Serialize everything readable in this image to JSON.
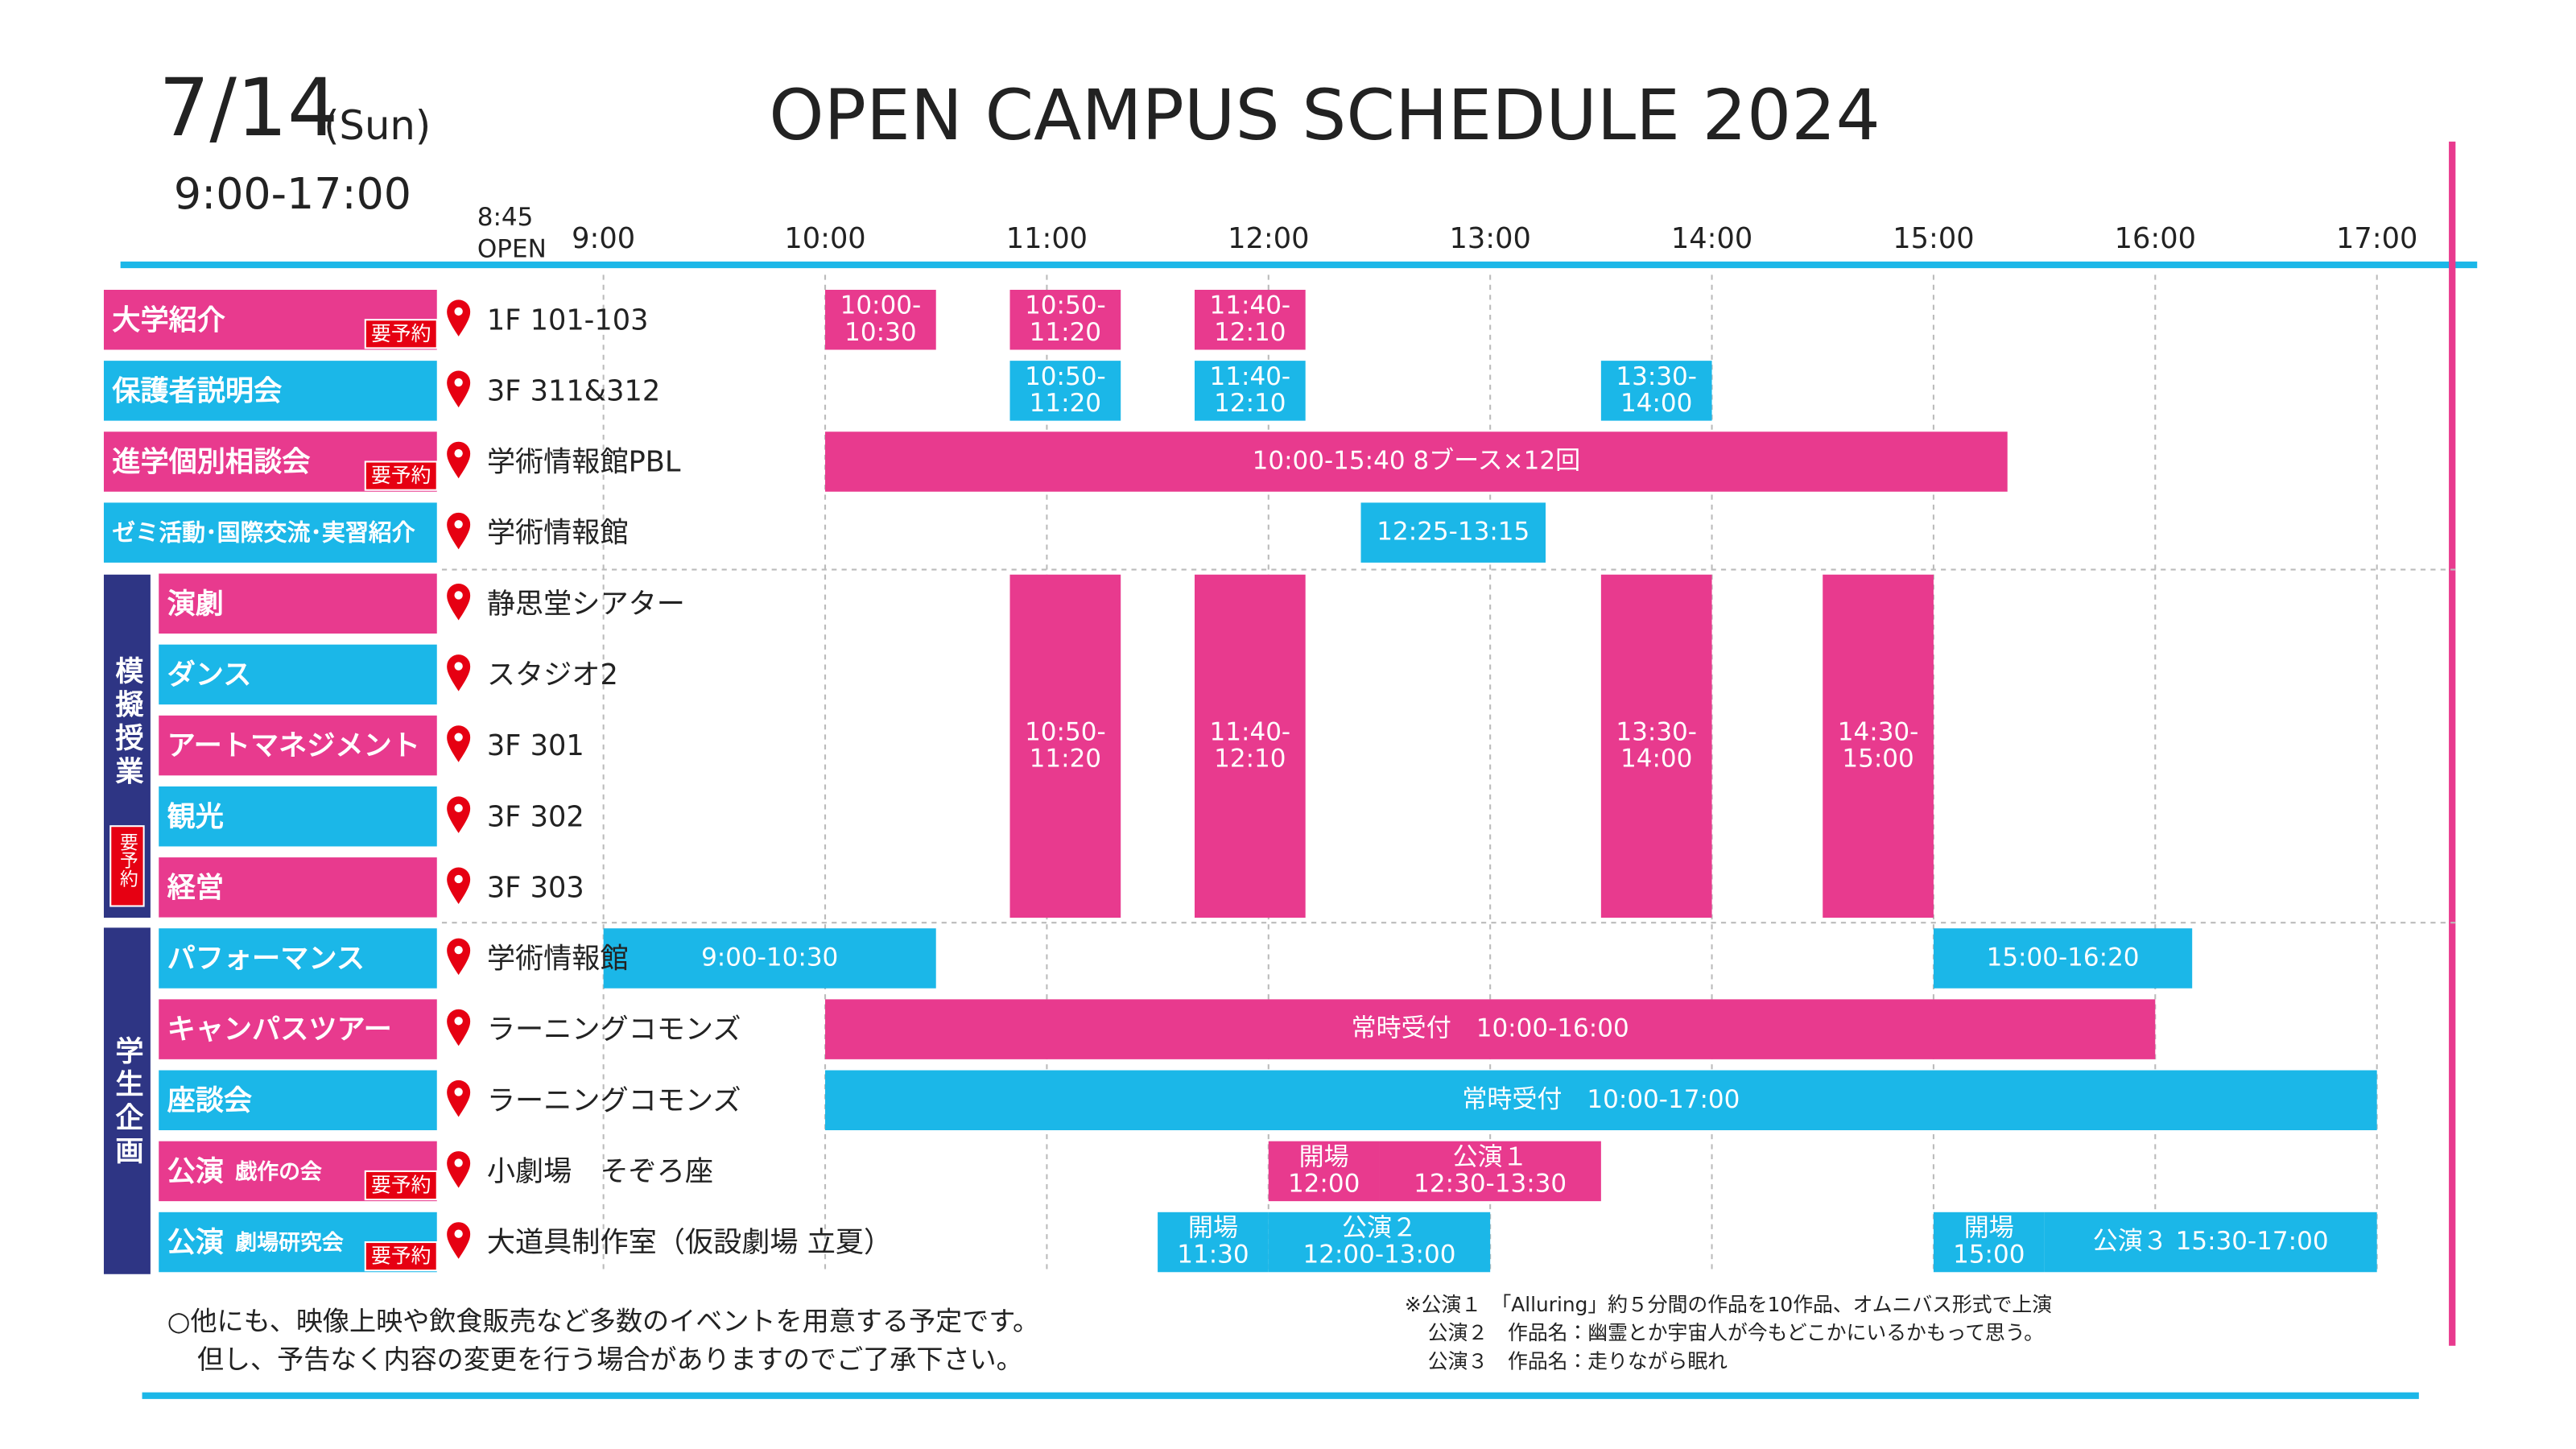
{
  "header": {
    "date": "7/14",
    "day": "(Sun)",
    "hours": "9:00-17:00",
    "title": "OPEN CAMPUS SCHEDULE 2024"
  },
  "timeline": {
    "open_time": "8:45",
    "open_label": "OPEN",
    "hours": [
      "9:00",
      "10:00",
      "11:00",
      "12:00",
      "13:00",
      "14:00",
      "15:00",
      "16:00",
      "17:00"
    ]
  },
  "groups": [
    {
      "label": "模擬授業",
      "badge": "要予約"
    },
    {
      "label": "学生企画"
    }
  ],
  "rows": [
    {
      "label": "大学紹介",
      "badge": "要予約",
      "location": "1F 101-103",
      "events": [
        {
          "lines": [
            "10:00-",
            "10:30"
          ]
        },
        {
          "lines": [
            "10:50-",
            "11:20"
          ]
        },
        {
          "lines": [
            "11:40-",
            "12:10"
          ]
        }
      ]
    },
    {
      "label": "保護者説明会",
      "location": "3F 311&312",
      "events": [
        {
          "lines": [
            "10:50-",
            "11:20"
          ]
        },
        {
          "lines": [
            "11:40-",
            "12:10"
          ]
        },
        {
          "lines": [
            "13:30-",
            "14:00"
          ]
        }
      ]
    },
    {
      "label": "進学個別相談会",
      "badge": "要予約",
      "location": "学術情報館PBL",
      "events": [
        {
          "lines": [
            "10:00-15:40 8ブース×12回"
          ]
        }
      ]
    },
    {
      "label": "ゼミ活動･国際交流･実習紹介",
      "location": "学術情報館",
      "events": [
        {
          "lines": [
            "12:25-13:15"
          ]
        }
      ]
    },
    {
      "label": "演劇",
      "location": "静思堂シアター"
    },
    {
      "label": "ダンス",
      "location": "スタジオ2"
    },
    {
      "label": "アートマネジメント",
      "location": "3F 301"
    },
    {
      "label": "観光",
      "location": "3F 302"
    },
    {
      "label": "経営",
      "location": "3F 303"
    },
    {
      "label": "パフォーマンス",
      "location": "学術情報館",
      "events": [
        {
          "lines": [
            "9:00-10:30"
          ]
        },
        {
          "lines": [
            "15:00-16:20"
          ]
        }
      ]
    },
    {
      "label": "キャンパスツアー",
      "location": "ラーニングコモンズ",
      "events": [
        {
          "lines": [
            "常時受付　10:00-16:00"
          ]
        }
      ]
    },
    {
      "label": "座談会",
      "location": "ラーニングコモンズ",
      "events": [
        {
          "lines": [
            "常時受付　10:00-17:00"
          ]
        }
      ]
    },
    {
      "label": "公演",
      "sublabel": "戯作の会",
      "badge": "要予約",
      "location": "小劇場　そぞろ座",
      "events": [
        {
          "lines": [
            "開場",
            "12:00"
          ]
        },
        {
          "lines": [
            "公演１",
            "12:30-13:30"
          ]
        }
      ]
    },
    {
      "label": "公演",
      "sublabel": "劇場研究会",
      "badge": "要予約",
      "location": "大道具制作室（仮設劇場 立夏）",
      "events": [
        {
          "lines": [
            "開場",
            "11:30"
          ]
        },
        {
          "lines": [
            "公演２",
            "12:00-13:00"
          ]
        },
        {
          "lines": [
            "開場",
            "15:00"
          ]
        },
        {
          "lines": [
            "公演３ 15:30-17:00"
          ]
        }
      ]
    }
  ],
  "shared_events": [
    {
      "lines": [
        "10:50-",
        "11:20"
      ]
    },
    {
      "lines": [
        "11:40-",
        "12:10"
      ]
    },
    {
      "lines": [
        "13:30-",
        "14:00"
      ]
    },
    {
      "lines": [
        "14:30-",
        "15:00"
      ]
    }
  ],
  "notes": [
    "○他にも、映像上映や飲食販売など多数のイベントを用意する予定です。",
    "但し、予告なく内容の変更を行う場合がありますのでご了承下さい。"
  ],
  "footnotes": [
    "※公演１　「Alluring」約５分間の作品を10作品、オムニバス形式で上演",
    "公演２　作品名：幽霊とか宇宙人が今もどこかにいるかもって思う。",
    "公演３　作品名：走りながら眠れ"
  ]
}
